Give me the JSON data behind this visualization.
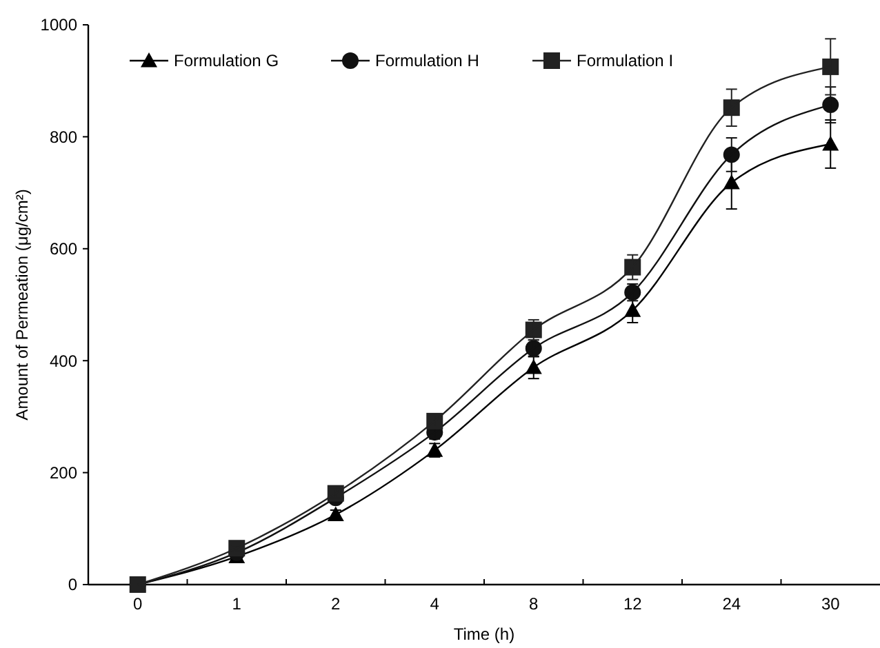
{
  "chart_data": {
    "type": "line",
    "xlabel": "Time (h)",
    "ylabel": "Amount of Permeation (μg/cm²)",
    "categories": [
      "0",
      "1",
      "2",
      "4",
      "8",
      "12",
      "24",
      "30"
    ],
    "ylim": [
      0,
      1000
    ],
    "yticks": [
      0,
      200,
      400,
      600,
      800,
      1000
    ],
    "grid": false,
    "legend": "top left",
    "line_style": "solid",
    "series": [
      {
        "name": "Formulation G",
        "color": "#000000",
        "marker": "triangle",
        "values": [
          0,
          50,
          125,
          240,
          388,
          490,
          718,
          787
        ],
        "errors": [
          null,
          5,
          8,
          12,
          20,
          22,
          47,
          43
        ]
      },
      {
        "name": "Formulation H",
        "color": "#111111",
        "marker": "circle",
        "values": [
          0,
          57,
          155,
          272,
          422,
          522,
          768,
          857
        ],
        "errors": [
          null,
          5,
          8,
          12,
          15,
          15,
          30,
          32
        ]
      },
      {
        "name": "Formulation I",
        "color": "#222222",
        "marker": "square",
        "values": [
          0,
          65,
          163,
          292,
          455,
          567,
          852,
          925
        ],
        "errors": [
          null,
          5,
          8,
          10,
          18,
          22,
          33,
          50
        ]
      }
    ]
  }
}
